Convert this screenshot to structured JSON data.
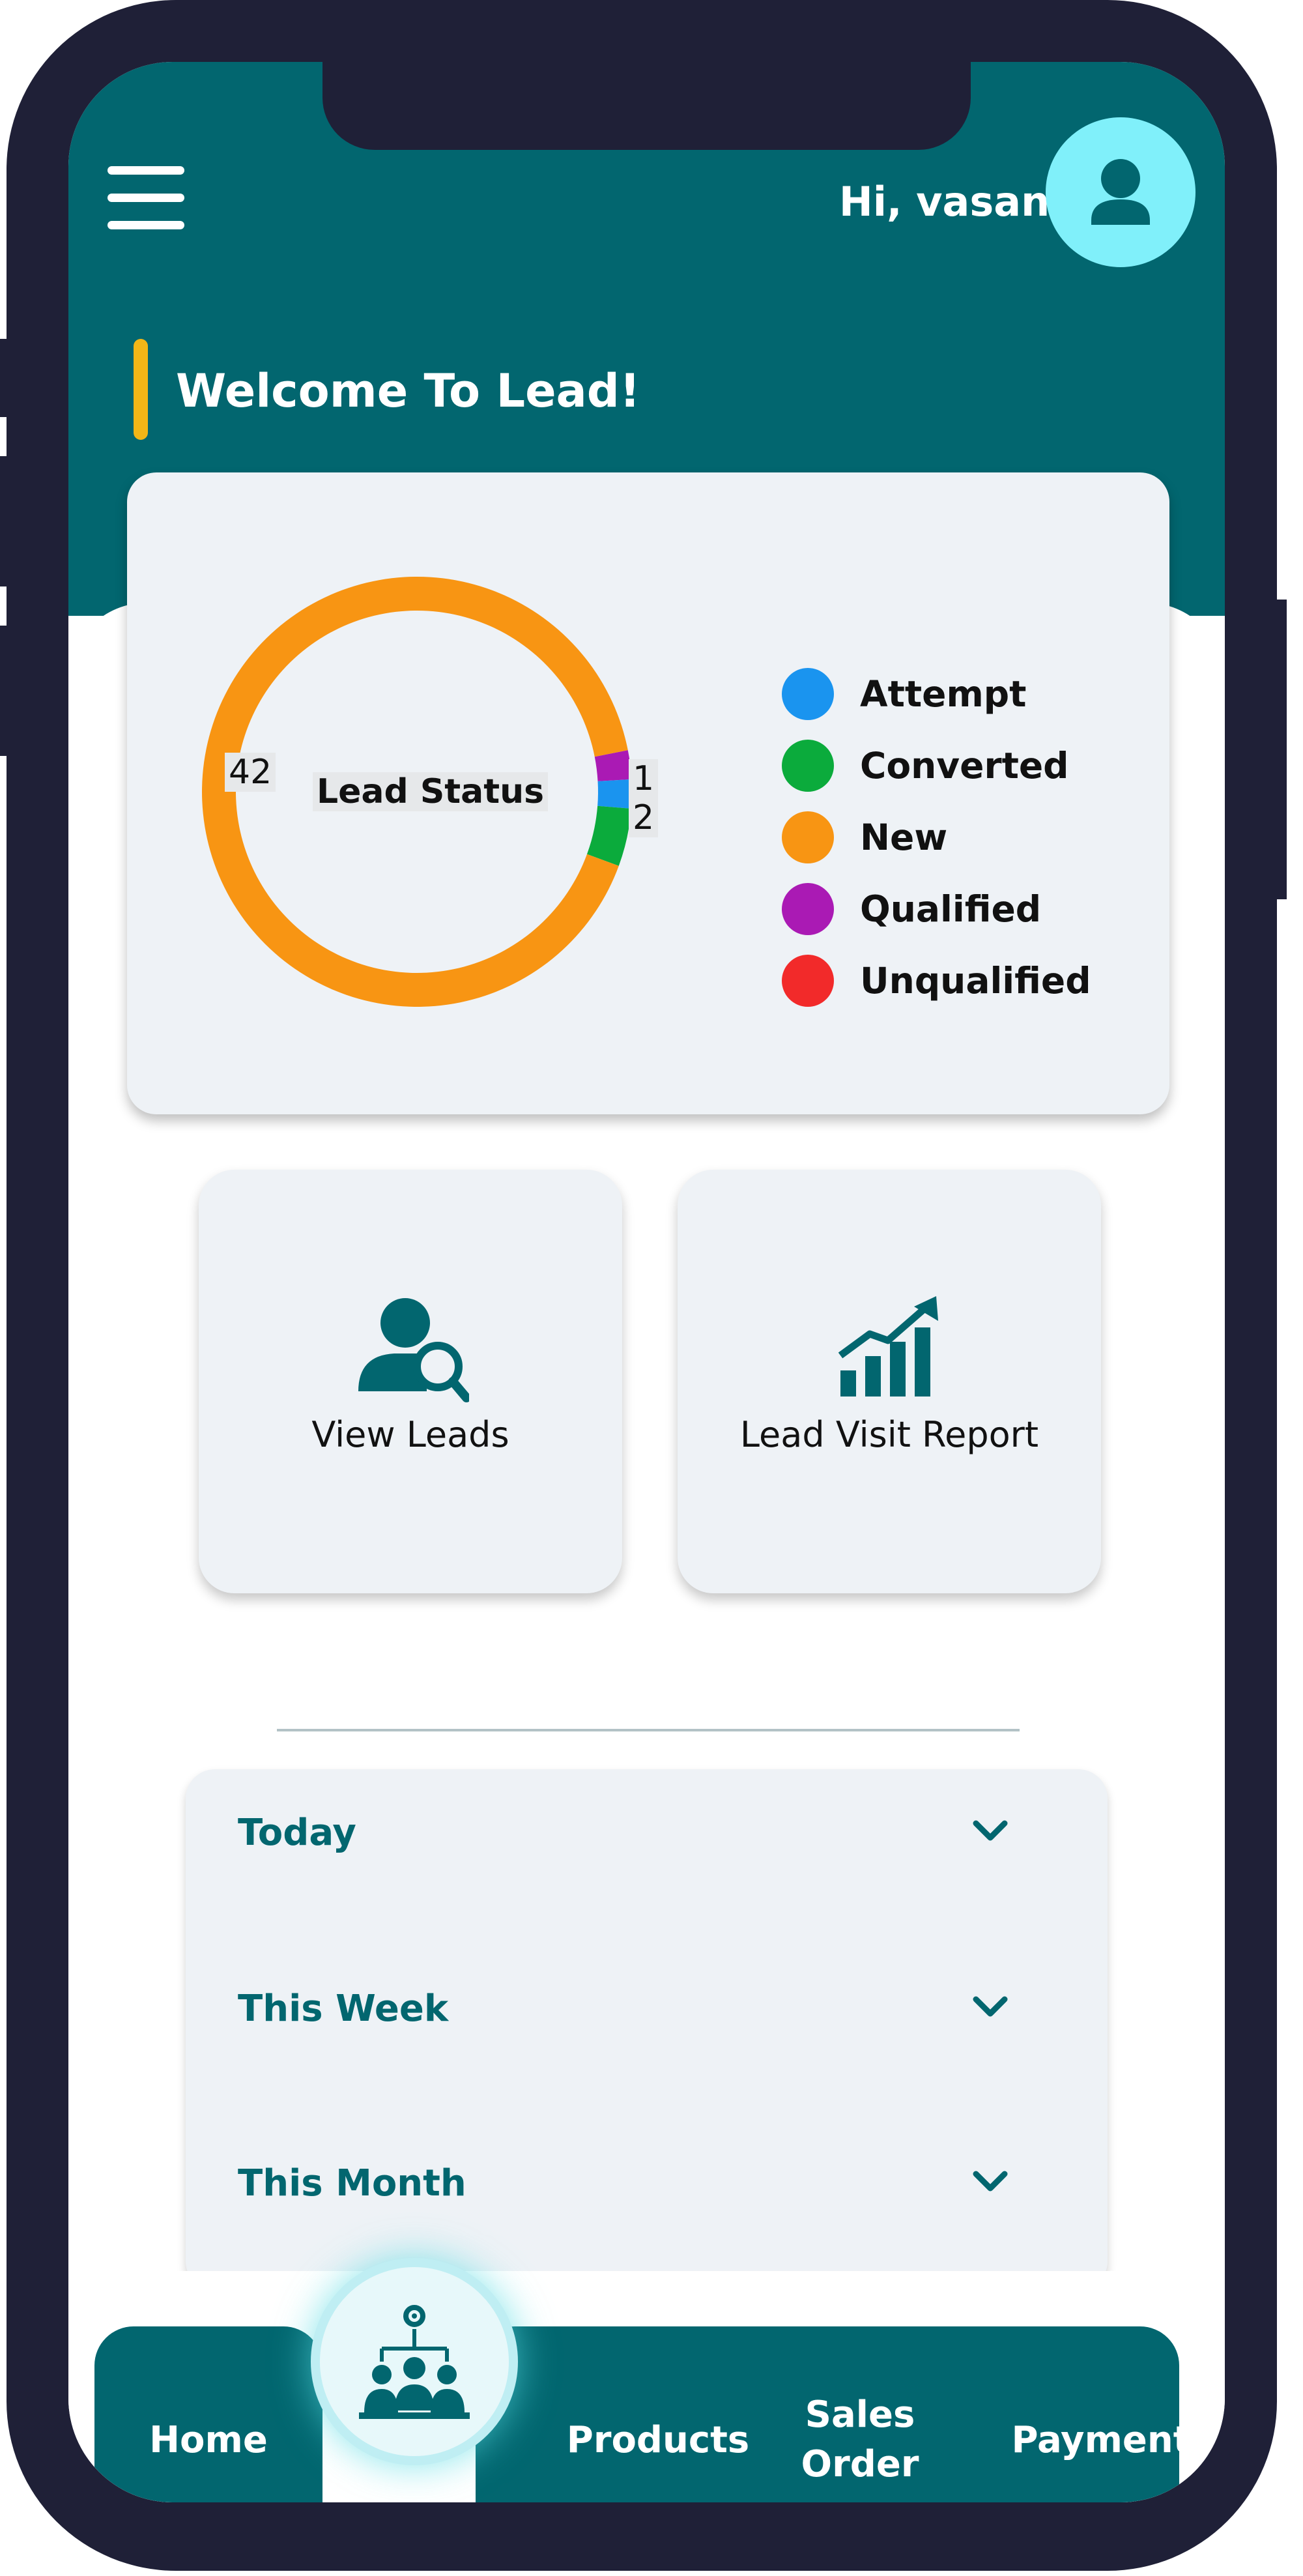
{
  "header": {
    "greeting": "Hi, vasanth",
    "welcome_title": "Welcome To Lead!"
  },
  "lead_status": {
    "center_label": "Lead Status",
    "slice_labels": [
      "42",
      "1",
      "2"
    ],
    "legend": [
      {
        "label": "Attempt",
        "color": "#1a94ef"
      },
      {
        "label": "Converted",
        "color": "#0bab3c"
      },
      {
        "label": "New",
        "color": "#f89513"
      },
      {
        "label": "Qualified",
        "color": "#aa1ab4"
      },
      {
        "label": "Unqualified",
        "color": "#f22a2a"
      }
    ]
  },
  "chart_data": {
    "type": "pie",
    "title": "Lead Status",
    "categories": [
      "Attempt",
      "Converted",
      "New",
      "Qualified",
      "Unqualified"
    ],
    "values": [
      1,
      2,
      42,
      1,
      0
    ],
    "colors": [
      "#1a94ef",
      "#0bab3c",
      "#f89513",
      "#aa1ab4",
      "#f22a2a"
    ],
    "legend_position": "right"
  },
  "tiles": {
    "view_leads": "View Leads",
    "lead_visit_report": "Lead Visit Report"
  },
  "periods": [
    {
      "label": "Today"
    },
    {
      "label": "This Week"
    },
    {
      "label": "This Month"
    }
  ],
  "nav": {
    "home": "Home",
    "products": "Products",
    "sales_order_line1": "Sales",
    "sales_order_line2": "Order",
    "payment": "Payment",
    "center_icon": "team-hierarchy-icon"
  },
  "colors": {
    "brand_teal": "#02666f",
    "accent_yellow": "#f2b617",
    "avatar_bg": "#80f0fa",
    "frame": "#1f2037"
  }
}
